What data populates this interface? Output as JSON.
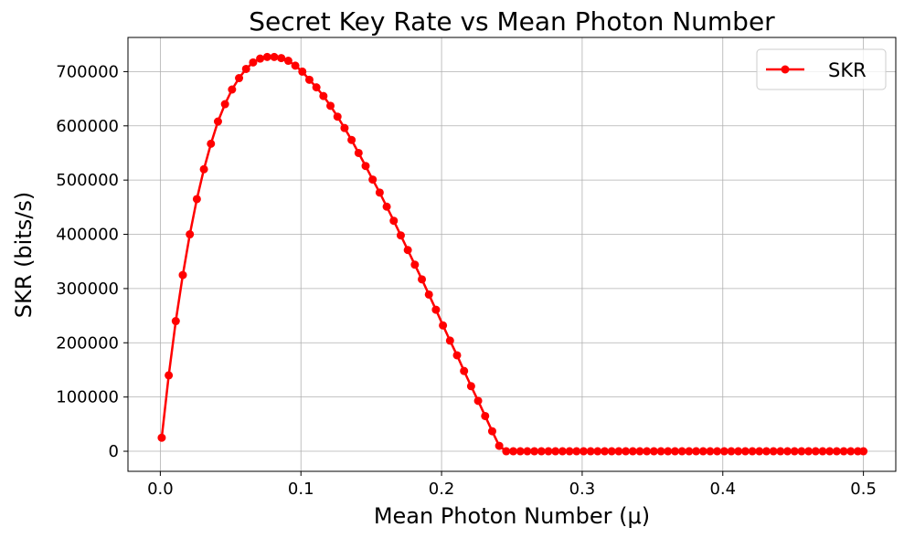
{
  "chart_data": {
    "type": "line",
    "title": "Secret Key Rate vs Mean Photon Number",
    "xlabel": "Mean Photon Number (μ)",
    "ylabel": "SKR (bits/s)",
    "xlim": [
      -0.023,
      0.523
    ],
    "ylim": [
      -37000,
      763000
    ],
    "xticks": [
      0.0,
      0.1,
      0.2,
      0.3,
      0.4,
      0.5
    ],
    "xtick_labels": [
      "0.0",
      "0.1",
      "0.2",
      "0.3",
      "0.4",
      "0.5"
    ],
    "yticks": [
      0,
      100000,
      200000,
      300000,
      400000,
      500000,
      600000,
      700000
    ],
    "ytick_labels": [
      "0",
      "100000",
      "200000",
      "300000",
      "400000",
      "500000",
      "600000",
      "700000"
    ],
    "grid": true,
    "legend_position": "top-right",
    "series": [
      {
        "name": "SKR",
        "color": "#ff0000",
        "marker": "circle",
        "x": [
          0.001,
          0.006,
          0.011,
          0.016,
          0.021,
          0.026,
          0.031,
          0.036,
          0.041,
          0.046,
          0.051,
          0.056,
          0.061,
          0.066,
          0.071,
          0.076,
          0.081,
          0.086,
          0.091,
          0.096,
          0.101,
          0.106,
          0.111,
          0.116,
          0.121,
          0.126,
          0.131,
          0.136,
          0.141,
          0.146,
          0.151,
          0.156,
          0.161,
          0.166,
          0.171,
          0.176,
          0.181,
          0.186,
          0.191,
          0.196,
          0.201,
          0.206,
          0.211,
          0.216,
          0.221,
          0.226,
          0.231,
          0.236,
          0.241,
          0.246,
          0.251,
          0.256,
          0.261,
          0.266,
          0.271,
          0.276,
          0.281,
          0.286,
          0.291,
          0.296,
          0.301,
          0.306,
          0.311,
          0.316,
          0.321,
          0.326,
          0.331,
          0.336,
          0.341,
          0.346,
          0.351,
          0.356,
          0.361,
          0.366,
          0.371,
          0.376,
          0.381,
          0.386,
          0.391,
          0.396,
          0.401,
          0.406,
          0.411,
          0.416,
          0.421,
          0.426,
          0.431,
          0.436,
          0.441,
          0.446,
          0.451,
          0.456,
          0.461,
          0.466,
          0.471,
          0.476,
          0.481,
          0.486,
          0.491,
          0.496,
          0.5
        ],
        "y": [
          25000,
          140000,
          240000,
          325000,
          400000,
          465000,
          520000,
          567000,
          608000,
          640000,
          667000,
          688000,
          705000,
          717000,
          724000,
          727000,
          727000,
          725000,
          720000,
          711000,
          700000,
          685000,
          671000,
          655000,
          637000,
          617000,
          596000,
          574000,
          550000,
          526000,
          501000,
          477000,
          451000,
          425000,
          398000,
          371000,
          344000,
          317000,
          289000,
          261000,
          232000,
          204000,
          177000,
          148000,
          120000,
          93000,
          65000,
          37000,
          10000,
          0,
          0,
          0,
          0,
          0,
          0,
          0,
          0,
          0,
          0,
          0,
          0,
          0,
          0,
          0,
          0,
          0,
          0,
          0,
          0,
          0,
          0,
          0,
          0,
          0,
          0,
          0,
          0,
          0,
          0,
          0,
          0,
          0,
          0,
          0,
          0,
          0,
          0,
          0,
          0,
          0,
          0,
          0,
          0,
          0,
          0,
          0,
          0,
          0,
          0,
          0,
          0
        ]
      }
    ]
  }
}
